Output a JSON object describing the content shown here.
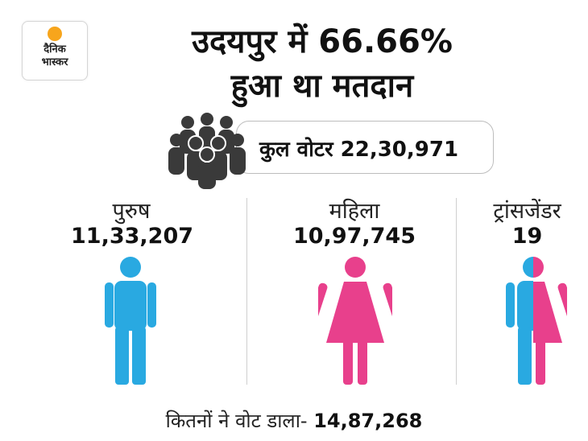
{
  "logo": {
    "line1": "दैनिक",
    "line2": "भास्कर"
  },
  "title": {
    "line1": "उदयपुर में 66.66%",
    "line2": "हुआ था मतदान"
  },
  "total_voters": {
    "label": "कुल वोटर",
    "value": "22,30,971"
  },
  "categories": [
    {
      "label": "पुरुष",
      "value": "11,33,207",
      "color": "#29a9e1",
      "icon": "male-figure-icon"
    },
    {
      "label": "महिला",
      "value": "10,97,745",
      "color": "#e8408c",
      "icon": "female-figure-icon"
    },
    {
      "label": "ट्रांसजेंडर",
      "value": "19",
      "colors": [
        "#29a9e1",
        "#e8408c"
      ],
      "icon": "transgender-figure-icon"
    }
  ],
  "footer": {
    "label": "कितनों ने वोट डाला-",
    "value": "14,87,268"
  }
}
